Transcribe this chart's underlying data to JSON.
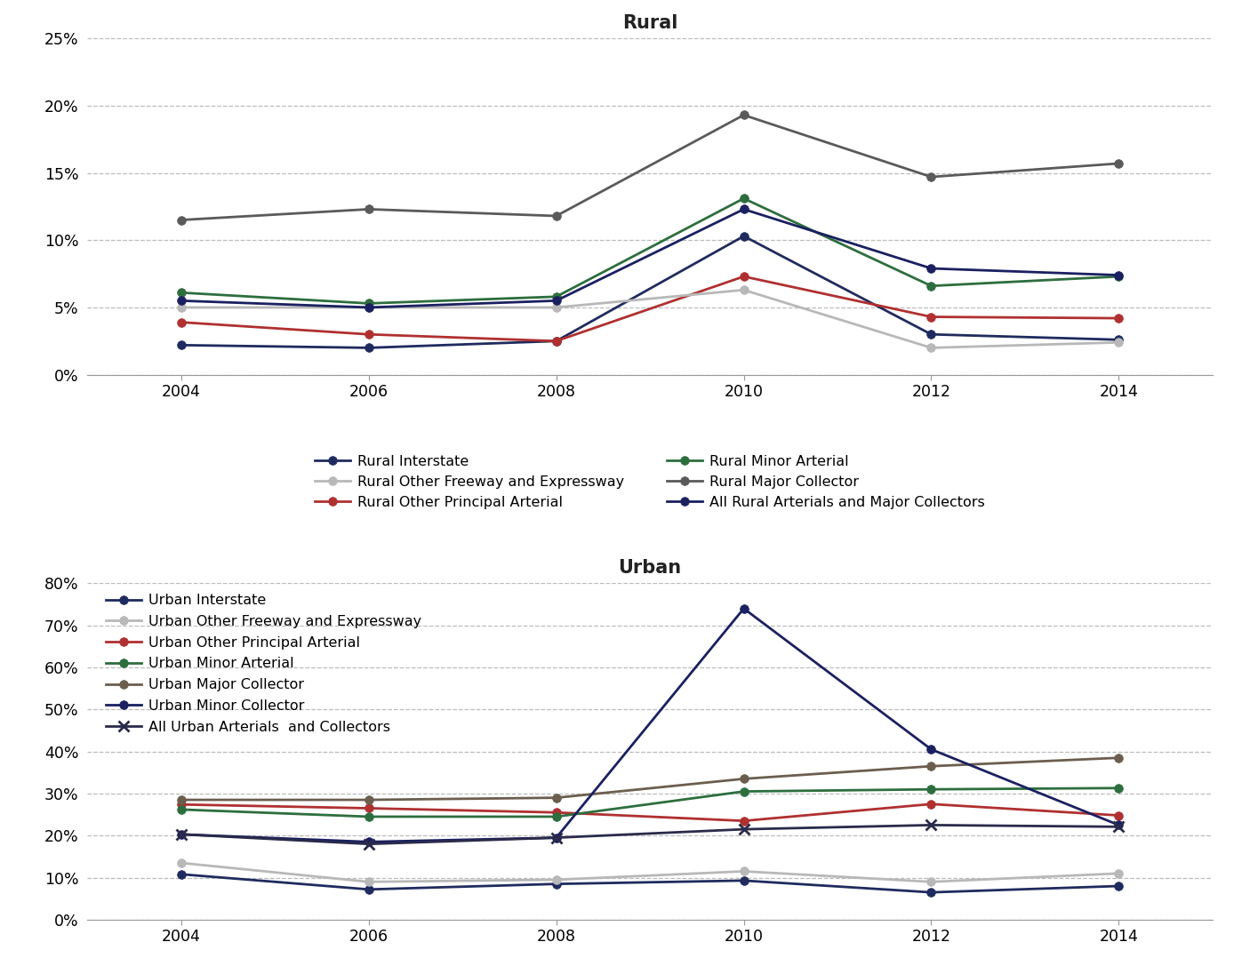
{
  "years": [
    2004,
    2006,
    2008,
    2010,
    2012,
    2014
  ],
  "rural": {
    "title": "Rural",
    "ylim": [
      0,
      25
    ],
    "yticks": [
      0,
      5,
      10,
      15,
      20,
      25
    ],
    "legend_order": [
      0,
      3,
      1,
      4,
      2,
      5
    ],
    "series": [
      {
        "label": "Rural Interstate",
        "color": "#1f2b5e",
        "marker": "o",
        "values": [
          2.2,
          2.0,
          2.5,
          10.3,
          3.0,
          2.6
        ]
      },
      {
        "label": "Rural Other Principal Arterial",
        "color": "#b03030",
        "marker": "o",
        "values": [
          3.9,
          3.0,
          2.5,
          7.3,
          4.3,
          4.2
        ]
      },
      {
        "label": "Rural Major Collector",
        "color": "#5a5a5a",
        "marker": "o",
        "values": [
          11.5,
          12.3,
          11.8,
          19.3,
          14.7,
          15.7
        ]
      },
      {
        "label": "Rural Other Freeway and Expressway",
        "color": "#b8b8b8",
        "marker": "o",
        "values": [
          5.0,
          5.0,
          5.0,
          6.3,
          2.0,
          2.4
        ]
      },
      {
        "label": "Rural Minor Arterial",
        "color": "#2d6e3e",
        "marker": "o",
        "values": [
          6.1,
          5.3,
          5.8,
          13.1,
          6.6,
          7.3
        ]
      },
      {
        "label": "All Rural Arterials and Major Collectors",
        "color": "#1a2060",
        "marker": "o",
        "values": [
          5.5,
          5.0,
          5.5,
          12.3,
          7.9,
          7.4
        ]
      }
    ]
  },
  "urban": {
    "title": "Urban",
    "ylim": [
      0,
      80
    ],
    "yticks": [
      0,
      10,
      20,
      30,
      40,
      50,
      60,
      70,
      80
    ],
    "series": [
      {
        "label": "Urban Interstate",
        "color": "#1f2b5e",
        "marker": "o",
        "values": [
          10.8,
          7.2,
          8.5,
          9.3,
          6.5,
          8.0
        ]
      },
      {
        "label": "Urban Other Freeway and Expressway",
        "color": "#b8b8b8",
        "marker": "o",
        "values": [
          13.5,
          9.0,
          9.5,
          11.5,
          9.0,
          11.0
        ]
      },
      {
        "label": "Urban Other Principal Arterial",
        "color": "#b03030",
        "marker": "o",
        "values": [
          27.4,
          26.5,
          25.5,
          23.5,
          27.5,
          24.8
        ]
      },
      {
        "label": "Urban Minor Arterial",
        "color": "#2d6e3e",
        "marker": "o",
        "values": [
          26.2,
          24.5,
          24.5,
          30.5,
          31.0,
          31.3
        ]
      },
      {
        "label": "Urban Major Collector",
        "color": "#6b5e4e",
        "marker": "o",
        "values": [
          28.5,
          28.5,
          29.0,
          33.5,
          36.5,
          38.5
        ]
      },
      {
        "label": "Urban Minor Collector",
        "color": "#1a2060",
        "marker": "o",
        "values": [
          20.3,
          18.5,
          19.5,
          74.0,
          40.5,
          22.5
        ]
      },
      {
        "label": "All Urban Arterials  and Collectors",
        "color": "#2a2a4a",
        "marker": "x",
        "values": [
          20.3,
          18.0,
          19.5,
          21.5,
          22.5,
          22.1
        ]
      }
    ]
  },
  "background_color": "#ffffff",
  "grid_color": "#aaaaaa"
}
